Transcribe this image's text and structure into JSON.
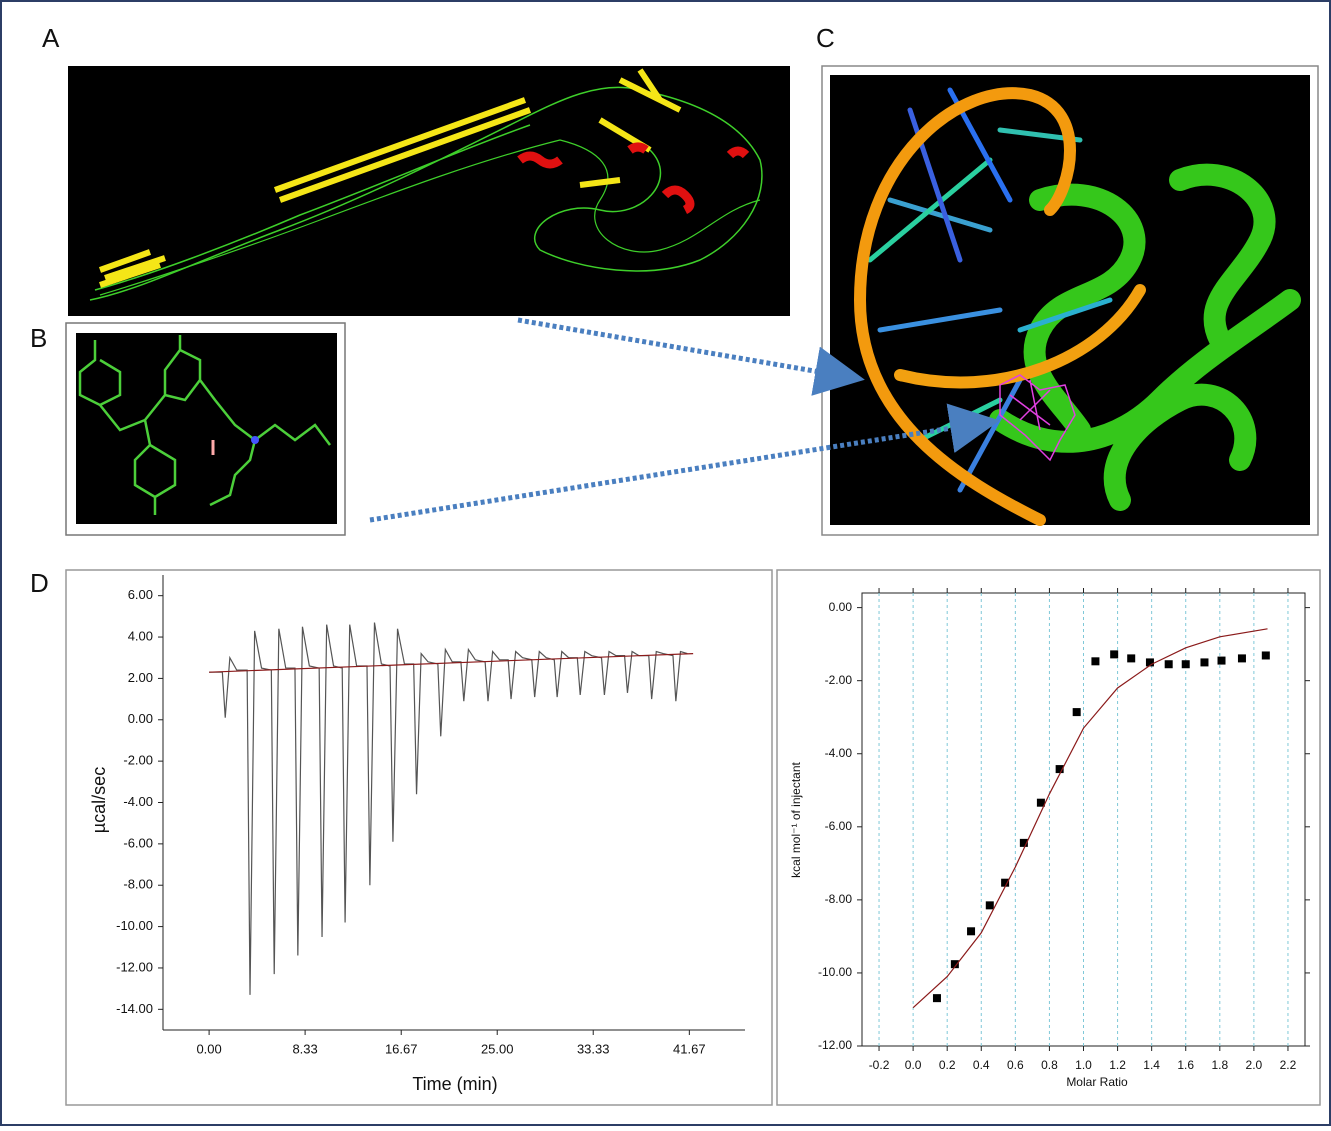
{
  "panel_labels": [
    "A",
    "B",
    "C",
    "D"
  ],
  "chart_data": [
    {
      "type": "line",
      "ylabel": "µcal/sec",
      "xlabel": "Time (min)",
      "xlim": [
        -4,
        46.5
      ],
      "ylim": [
        -15,
        7
      ],
      "xticks": [
        {
          "value": 0,
          "label": "0.00"
        },
        8.33,
        16.67,
        {
          "value": 25,
          "label": "25.00"
        },
        33.33,
        41.67
      ],
      "yticks": [
        {
          "value": 6,
          "label": "6.00"
        },
        {
          "value": 4,
          "label": "4.00"
        },
        {
          "value": 2,
          "label": "2.00"
        },
        {
          "value": 0,
          "label": "0.00"
        },
        {
          "value": -2,
          "label": "-2.00"
        },
        {
          "value": -4,
          "label": "-4.00"
        },
        {
          "value": -6,
          "label": "-6.00"
        },
        {
          "value": -8,
          "label": "-8.00"
        },
        {
          "value": -10,
          "label": "-10.00"
        },
        {
          "value": -12,
          "label": "-12.00"
        },
        {
          "value": -14,
          "label": "-14.00"
        }
      ],
      "grid": false,
      "series": [
        {
          "color": "#555555",
          "x": [
            0,
            1.15,
            1.4,
            1.8,
            2.4,
            3.3,
            3.55,
            3.95,
            4.55,
            5.4,
            5.65,
            6.05,
            6.65,
            7.45,
            7.7,
            8.1,
            8.7,
            9.55,
            9.8,
            10.2,
            10.8,
            11.55,
            11.8,
            12.2,
            12.8,
            13.7,
            13.95,
            14.35,
            14.95,
            15.7,
            15.95,
            16.35,
            16.95,
            17.75,
            18.0,
            18.4,
            19.0,
            19.85,
            20.1,
            20.5,
            21.1,
            21.85,
            22.1,
            22.5,
            23.1,
            23.95,
            24.2,
            24.6,
            25.2,
            25.95,
            26.2,
            26.6,
            27.2,
            28.0,
            28.25,
            28.65,
            29.25,
            29.95,
            30.2,
            30.6,
            31.2,
            31.95,
            32.2,
            32.6,
            33.2,
            34.05,
            34.3,
            34.7,
            35.3,
            36.05,
            36.3,
            36.7,
            37.3,
            38.15,
            38.4,
            38.8,
            39.4,
            40.25,
            40.5,
            40.9,
            41.5
          ],
          "values": [
            2.3,
            2.3,
            0.1,
            3.0,
            2.4,
            2.4,
            -13.3,
            4.3,
            2.5,
            2.4,
            -12.3,
            4.4,
            2.5,
            2.5,
            -11.4,
            4.5,
            2.6,
            2.5,
            -10.5,
            4.6,
            2.6,
            2.5,
            -9.8,
            4.6,
            2.6,
            2.6,
            -8.0,
            4.7,
            2.7,
            2.6,
            -5.9,
            4.4,
            2.7,
            2.7,
            -3.6,
            3.2,
            2.8,
            2.7,
            -0.8,
            3.4,
            2.8,
            2.8,
            0.9,
            3.4,
            2.9,
            2.8,
            0.9,
            3.3,
            2.9,
            2.9,
            1.0,
            3.3,
            3.0,
            2.9,
            1.1,
            3.3,
            3.0,
            2.9,
            1.1,
            3.3,
            3.0,
            3.0,
            1.2,
            3.3,
            3.1,
            3.0,
            1.2,
            3.3,
            3.1,
            3.1,
            1.3,
            3.3,
            3.1,
            3.1,
            1.0,
            3.3,
            3.2,
            3.1,
            0.9,
            3.3,
            3.2
          ]
        },
        {
          "color": "#8b1a1a",
          "x": [
            0,
            42
          ],
          "values": [
            2.3,
            3.2
          ]
        }
      ]
    },
    {
      "type": "scatter",
      "ylabel": "kcal mol⁻¹ of injectant",
      "xlabel": "Molar Ratio",
      "xlim": [
        -0.3,
        2.3
      ],
      "ylim": [
        -12,
        0.4
      ],
      "xticks": [
        -0.2,
        {
          "value": 0,
          "label": "0.0"
        },
        0.2,
        0.4,
        0.6,
        0.8,
        {
          "value": 1,
          "label": "1.0"
        },
        1.2,
        1.4,
        1.6,
        1.8,
        {
          "value": 2,
          "label": "2.0"
        },
        2.2
      ],
      "yticks": [
        {
          "value": 0,
          "label": "0.00"
        },
        {
          "value": -2,
          "label": "-2.00"
        },
        {
          "value": -4,
          "label": "-4.00"
        },
        {
          "value": -6,
          "label": "-6.00"
        },
        {
          "value": -8,
          "label": "-8.00"
        },
        {
          "value": -10,
          "label": "-10.00"
        },
        {
          "value": -12,
          "label": "-12.00"
        }
      ],
      "grid": "x",
      "series": [
        {
          "color": "#000000",
          "x": [
            0.14,
            0.245,
            0.34,
            0.45,
            0.54,
            0.65,
            0.75,
            0.86,
            0.96,
            1.07,
            1.18,
            1.28,
            1.39,
            1.5,
            1.6,
            1.71,
            1.81,
            1.93,
            2.07
          ],
          "values": [
            -10.69,
            -9.76,
            -8.86,
            -8.15,
            -7.53,
            -6.44,
            -5.34,
            -4.42,
            -2.86,
            -1.47,
            -1.28,
            -1.39,
            -1.5,
            -1.55,
            -1.55,
            -1.5,
            -1.45,
            -1.39,
            -1.31
          ]
        },
        {
          "type": "line",
          "color": "#8b1a1a",
          "x": [
            0,
            0.2,
            0.4,
            0.6,
            0.8,
            1.0,
            1.2,
            1.4,
            1.6,
            1.8,
            2.08
          ],
          "values": [
            -10.95,
            -10.1,
            -8.9,
            -7.1,
            -5.1,
            -3.3,
            -2.2,
            -1.55,
            -1.1,
            -0.8,
            -0.58
          ]
        }
      ]
    }
  ]
}
